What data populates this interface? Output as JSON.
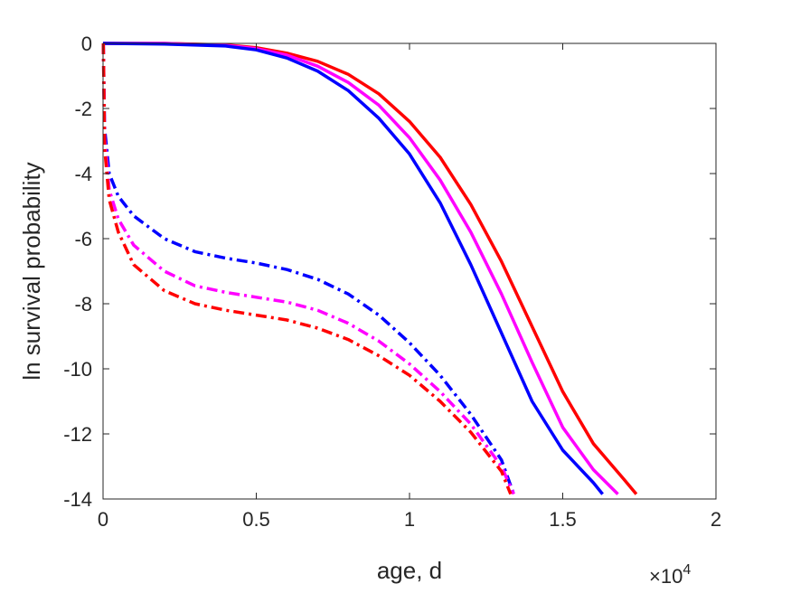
{
  "chart_data": {
    "type": "line",
    "xlabel": "age, d",
    "ylabel": "ln survival probability",
    "x_exponent_label": "×10",
    "x_exponent_power": "4",
    "xlim": [
      0,
      2
    ],
    "ylim": [
      -14,
      0
    ],
    "xticks": [
      "0",
      "0.5",
      "1",
      "1.5",
      "2"
    ],
    "yticks": [
      "0",
      "-2",
      "-4",
      "-6",
      "-8",
      "-10",
      "-12",
      "-14"
    ],
    "grid": false,
    "legend": "none",
    "series": [
      {
        "color": "#ff0000",
        "style": "solid",
        "points": [
          [
            0,
            0
          ],
          [
            0.2,
            0
          ],
          [
            0.4,
            -0.05
          ],
          [
            0.5,
            -0.13
          ],
          [
            0.6,
            -0.3
          ],
          [
            0.7,
            -0.55
          ],
          [
            0.8,
            -0.95
          ],
          [
            0.9,
            -1.55
          ],
          [
            1.0,
            -2.4
          ],
          [
            1.1,
            -3.5
          ],
          [
            1.2,
            -4.95
          ],
          [
            1.3,
            -6.7
          ],
          [
            1.4,
            -8.7
          ],
          [
            1.5,
            -10.7
          ],
          [
            1.6,
            -12.3
          ],
          [
            1.7,
            -13.4
          ],
          [
            1.74,
            -13.85
          ]
        ]
      },
      {
        "color": "#ff00ff",
        "style": "solid",
        "points": [
          [
            0,
            0
          ],
          [
            0.2,
            0
          ],
          [
            0.4,
            -0.06
          ],
          [
            0.5,
            -0.16
          ],
          [
            0.6,
            -0.36
          ],
          [
            0.7,
            -0.7
          ],
          [
            0.8,
            -1.2
          ],
          [
            0.9,
            -1.9
          ],
          [
            1.0,
            -2.9
          ],
          [
            1.1,
            -4.2
          ],
          [
            1.2,
            -5.8
          ],
          [
            1.3,
            -7.7
          ],
          [
            1.4,
            -9.8
          ],
          [
            1.5,
            -11.8
          ],
          [
            1.6,
            -13.1
          ],
          [
            1.68,
            -13.85
          ]
        ]
      },
      {
        "color": "#0000ff",
        "style": "solid",
        "points": [
          [
            0,
            0
          ],
          [
            0.2,
            -0.02
          ],
          [
            0.4,
            -0.08
          ],
          [
            0.5,
            -0.2
          ],
          [
            0.6,
            -0.45
          ],
          [
            0.7,
            -0.85
          ],
          [
            0.8,
            -1.45
          ],
          [
            0.9,
            -2.3
          ],
          [
            1.0,
            -3.4
          ],
          [
            1.1,
            -4.9
          ],
          [
            1.2,
            -6.8
          ],
          [
            1.3,
            -8.9
          ],
          [
            1.4,
            -11.0
          ],
          [
            1.5,
            -12.5
          ],
          [
            1.6,
            -13.5
          ],
          [
            1.63,
            -13.85
          ]
        ]
      },
      {
        "color": "#0000ff",
        "style": "dashdot",
        "points": [
          [
            0.001,
            0
          ],
          [
            0.005,
            -2.6
          ],
          [
            0.02,
            -4.0
          ],
          [
            0.05,
            -4.7
          ],
          [
            0.1,
            -5.3
          ],
          [
            0.2,
            -6.0
          ],
          [
            0.3,
            -6.4
          ],
          [
            0.4,
            -6.6
          ],
          [
            0.5,
            -6.75
          ],
          [
            0.6,
            -6.95
          ],
          [
            0.7,
            -7.25
          ],
          [
            0.8,
            -7.7
          ],
          [
            0.9,
            -8.35
          ],
          [
            1.0,
            -9.2
          ],
          [
            1.1,
            -10.2
          ],
          [
            1.2,
            -11.4
          ],
          [
            1.3,
            -12.8
          ],
          [
            1.34,
            -13.85
          ]
        ]
      },
      {
        "color": "#ff00ff",
        "style": "dashdot",
        "points": [
          [
            0.001,
            0
          ],
          [
            0.005,
            -2.9
          ],
          [
            0.02,
            -4.5
          ],
          [
            0.05,
            -5.4
          ],
          [
            0.1,
            -6.2
          ],
          [
            0.2,
            -7.0
          ],
          [
            0.3,
            -7.45
          ],
          [
            0.4,
            -7.65
          ],
          [
            0.5,
            -7.8
          ],
          [
            0.6,
            -7.95
          ],
          [
            0.7,
            -8.2
          ],
          [
            0.8,
            -8.6
          ],
          [
            0.9,
            -9.15
          ],
          [
            1.0,
            -9.85
          ],
          [
            1.1,
            -10.7
          ],
          [
            1.2,
            -11.7
          ],
          [
            1.3,
            -13.0
          ],
          [
            1.34,
            -13.85
          ]
        ]
      },
      {
        "color": "#ff0000",
        "style": "dashdot",
        "points": [
          [
            0.001,
            0
          ],
          [
            0.005,
            -3.2
          ],
          [
            0.02,
            -4.8
          ],
          [
            0.05,
            -5.8
          ],
          [
            0.1,
            -6.8
          ],
          [
            0.2,
            -7.6
          ],
          [
            0.3,
            -8.0
          ],
          [
            0.4,
            -8.2
          ],
          [
            0.5,
            -8.35
          ],
          [
            0.6,
            -8.5
          ],
          [
            0.7,
            -8.75
          ],
          [
            0.8,
            -9.1
          ],
          [
            0.9,
            -9.6
          ],
          [
            1.0,
            -10.2
          ],
          [
            1.1,
            -11.0
          ],
          [
            1.2,
            -11.95
          ],
          [
            1.3,
            -13.15
          ],
          [
            1.33,
            -13.85
          ]
        ]
      }
    ]
  }
}
